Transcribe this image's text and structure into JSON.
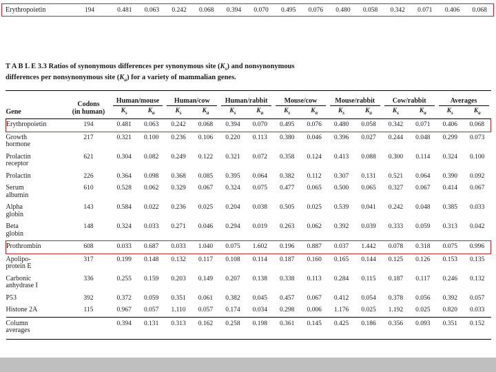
{
  "colors": {
    "highlight": "#c22727",
    "rule": "#000000",
    "text": "#1a1a1a",
    "bottom_bar": "#bfbfbf"
  },
  "callout": {
    "gene": "Erythropoietin",
    "codons": "194",
    "values": [
      "0.481",
      "0.063",
      "0.242",
      "0.068",
      "0.394",
      "0.070",
      "0.495",
      "0.076",
      "0.480",
      "0.058",
      "0.342",
      "0.071",
      "0.406",
      "0.068"
    ]
  },
  "table": {
    "title_segments": [
      {
        "t": "T A B L E   3.3    "
      },
      {
        "t": "Ratios of synonymous differences per synonymous site ("
      },
      {
        "t": "K",
        "italic": true
      },
      {
        "t": "s",
        "sub": true
      },
      {
        "t": ") and nonsynonymous"
      },
      {
        "br": true
      },
      {
        "t": "differences per nonsynonymous site ("
      },
      {
        "t": "K",
        "italic": true
      },
      {
        "t": "a",
        "sub": true
      },
      {
        "t": ") for a variety of mammalian genes."
      }
    ],
    "headers": {
      "gene": "Gene",
      "codons": "Codons\n(in human)",
      "groups": [
        "Human/mouse",
        "Human/cow",
        "Human/rabbit",
        "Mouse/cow",
        "Mouse/rabbit",
        "Cow/rabbit",
        "Averages"
      ],
      "sub": {
        "base": "K",
        "s": "s",
        "a": "a"
      }
    },
    "rows": [
      {
        "gene": "Erythropoietin",
        "codons": "194",
        "highlight": true,
        "values": [
          "0.481",
          "0.063",
          "0.242",
          "0.068",
          "0.394",
          "0.070",
          "0.495",
          "0.076",
          "0.480",
          "0.058",
          "0.342",
          "0.071",
          "0.406",
          "0.068"
        ]
      },
      {
        "gene": "Growth\nhormone",
        "codons": "217",
        "highlight": false,
        "values": [
          "0.321",
          "0.100",
          "0.236",
          "0.106",
          "0.220",
          "0.113",
          "0.380",
          "0.046",
          "0.396",
          "0.027",
          "0.244",
          "0.048",
          "0.299",
          "0.073"
        ]
      },
      {
        "gene": "Prolactin\nreceptor",
        "codons": "621",
        "highlight": false,
        "values": [
          "0.304",
          "0.082",
          "0.249",
          "0.122",
          "0.321",
          "0.072",
          "0.358",
          "0.124",
          "0.413",
          "0.088",
          "0.300",
          "0.114",
          "0.324",
          "0.100"
        ]
      },
      {
        "gene": "Prolactin",
        "codons": "226",
        "highlight": false,
        "values": [
          "0.364",
          "0.098",
          "0.368",
          "0.085",
          "0.395",
          "0.064",
          "0.382",
          "0.112",
          "0.307",
          "0.131",
          "0.521",
          "0.064",
          "0.390",
          "0.092"
        ]
      },
      {
        "gene": "Serum\nalbumin",
        "codons": "610",
        "highlight": false,
        "values": [
          "0.528",
          "0.062",
          "0.329",
          "0.067",
          "0.324",
          "0.075",
          "0.477",
          "0.065",
          "0.500",
          "0.065",
          "0.327",
          "0.067",
          "0.414",
          "0.067"
        ]
      },
      {
        "gene": "Alpha\nglobin",
        "codons": "143",
        "highlight": false,
        "values": [
          "0.584",
          "0.022",
          "0.236",
          "0.025",
          "0.204",
          "0.038",
          "0.505",
          "0.025",
          "0.539",
          "0.041",
          "0.242",
          "0.048",
          "0.385",
          "0.033"
        ]
      },
      {
        "gene": "Beta\nglobin",
        "codons": "148",
        "highlight": false,
        "values": [
          "0.324",
          "0.033",
          "0.271",
          "0.046",
          "0.294",
          "0.019",
          "0.263",
          "0.062",
          "0.392",
          "0.039",
          "0.333",
          "0.059",
          "0.313",
          "0.042"
        ]
      },
      {
        "gene": "Prothrombin",
        "codons": "608",
        "highlight": true,
        "values": [
          "0.033",
          "0.687",
          "0.033",
          "1.040",
          "0.075",
          "1.602",
          "0.196",
          "0.887",
          "0.037",
          "1.442",
          "0.078",
          "0.318",
          "0.075",
          "0.996"
        ]
      },
      {
        "gene": "Apolipo-\nprotein E",
        "codons": "317",
        "highlight": false,
        "values": [
          "0.199",
          "0.148",
          "0.132",
          "0.117",
          "0.108",
          "0.114",
          "0.187",
          "0.160",
          "0.165",
          "0.144",
          "0.125",
          "0.126",
          "0.153",
          "0.135"
        ]
      },
      {
        "gene": "Carbonic\nanhydrase I",
        "codons": "336",
        "highlight": false,
        "values": [
          "0.255",
          "0.159",
          "0.203",
          "0.149",
          "0.207",
          "0.138",
          "0.338",
          "0.113",
          "0.284",
          "0.115",
          "0.187",
          "0.117",
          "0.246",
          "0.132"
        ]
      },
      {
        "gene": "P53",
        "codons": "392",
        "highlight": false,
        "values": [
          "0.372",
          "0.059",
          "0.351",
          "0.061",
          "0.382",
          "0.045",
          "0.457",
          "0.067",
          "0.412",
          "0.054",
          "0.378",
          "0.056",
          "0.392",
          "0.057"
        ]
      },
      {
        "gene": "Histone 2A",
        "codons": "115",
        "highlight": false,
        "values": [
          "0.967",
          "0.057",
          "1.110",
          "0.057",
          "0.174",
          "0.034",
          "0.298",
          "0.006",
          "1.176",
          "0.025",
          "1.192",
          "0.025",
          "0.820",
          "0.033"
        ]
      }
    ],
    "footer": {
      "gene": "Column\naverages",
      "codons": "",
      "values": [
        "0.394",
        "0.131",
        "0.313",
        "0.162",
        "0.258",
        "0.198",
        "0.361",
        "0.145",
        "0.425",
        "0.186",
        "0.356",
        "0.093",
        "0.351",
        "0.152"
      ]
    }
  }
}
